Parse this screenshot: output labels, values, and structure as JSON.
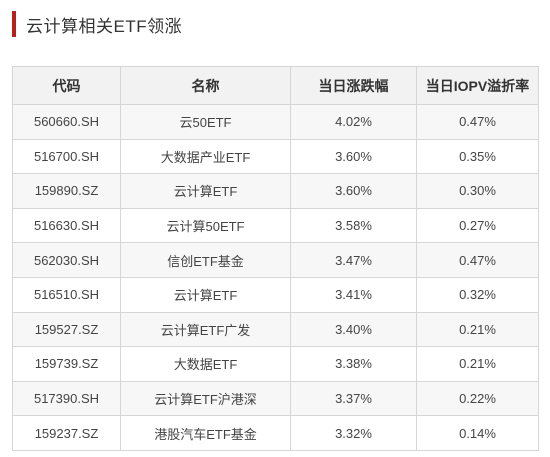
{
  "title": "云计算相关ETF领涨",
  "colors": {
    "accent": "#b5221e",
    "header_bg": "#f2f2f2",
    "stripe_bg": "#f7f7f7",
    "border": "#d6d6d6"
  },
  "table": {
    "headers": [
      "代码",
      "名称",
      "当日涨跌幅",
      "当日IOPV溢折率"
    ],
    "rows": [
      [
        "560660.SH",
        "云50ETF",
        "4.02%",
        "0.47%"
      ],
      [
        "516700.SH",
        "大数据产业ETF",
        "3.60%",
        "0.35%"
      ],
      [
        "159890.SZ",
        "云计算ETF",
        "3.60%",
        "0.30%"
      ],
      [
        "516630.SH",
        "云计算50ETF",
        "3.58%",
        "0.27%"
      ],
      [
        "562030.SH",
        "信创ETF基金",
        "3.47%",
        "0.47%"
      ],
      [
        "516510.SH",
        "云计算ETF",
        "3.41%",
        "0.32%"
      ],
      [
        "159527.SZ",
        "云计算ETF广发",
        "3.40%",
        "0.21%"
      ],
      [
        "159739.SZ",
        "大数据ETF",
        "3.38%",
        "0.21%"
      ],
      [
        "517390.SH",
        "云计算ETF沪港深",
        "3.37%",
        "0.22%"
      ],
      [
        "159237.SZ",
        "港股汽车ETF基金",
        "3.32%",
        "0.14%"
      ]
    ]
  }
}
